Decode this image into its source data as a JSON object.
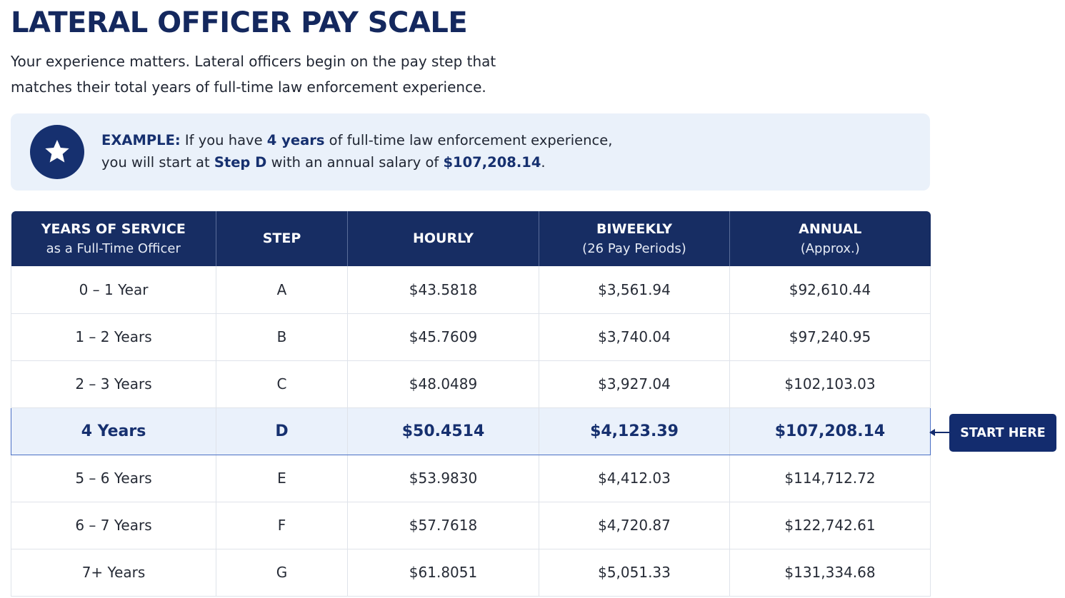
{
  "title": "LATERAL OFFICER PAY SCALE",
  "intro": {
    "line1": "Your experience matters. Lateral officers begin on the pay step that",
    "line2": "matches their total years of full-time law enforcement experience."
  },
  "example": {
    "icon": "star-icon",
    "label": "EXAMPLE:",
    "text1": " If you have ",
    "years": "4 years",
    "text2": " of full-time law enforcement experience,",
    "text3": "you will start at ",
    "step": "Step D",
    "text4": " with an annual salary of ",
    "salary": "$107,208.14",
    "text5": "."
  },
  "table": {
    "headers": [
      {
        "main": "YEARS OF SERVICE",
        "sub": "as a Full-Time Officer"
      },
      {
        "main": "STEP",
        "sub": ""
      },
      {
        "main": "HOURLY",
        "sub": ""
      },
      {
        "main": "BIWEEKLY",
        "sub": "(26 Pay Periods)"
      },
      {
        "main": "ANNUAL",
        "sub": "(Approx.)"
      }
    ],
    "rows": [
      {
        "years": "0 – 1 Year",
        "step": "A",
        "hourly": "$43.5818",
        "biweekly": "$3,561.94",
        "annual": "$92,610.44"
      },
      {
        "years": "1 – 2 Years",
        "step": "B",
        "hourly": "$45.7609",
        "biweekly": "$3,740.04",
        "annual": "$97,240.95"
      },
      {
        "years": "2 – 3 Years",
        "step": "C",
        "hourly": "$48.0489",
        "biweekly": "$3,927.04",
        "annual": "$102,103.03"
      },
      {
        "years": "4 Years",
        "step": "D",
        "hourly": "$50.4514",
        "biweekly": "$4,123.39",
        "annual": "$107,208.14"
      },
      {
        "years": "5 – 6 Years",
        "step": "E",
        "hourly": "$53.9830",
        "biweekly": "$4,412.03",
        "annual": "$114,712.72"
      },
      {
        "years": "6 – 7 Years",
        "step": "F",
        "hourly": "$57.7618",
        "biweekly": "$4,720.87",
        "annual": "$122,742.61"
      },
      {
        "years": "7+ Years",
        "step": "G",
        "hourly": "$61.8051",
        "biweekly": "$5,051.33",
        "annual": "$131,334.68"
      }
    ]
  },
  "start_here": "START HERE",
  "colors": {
    "navy": "#172d63",
    "highlight_bg": "#eaf1fb",
    "highlight_border": "#4a6fc4"
  }
}
